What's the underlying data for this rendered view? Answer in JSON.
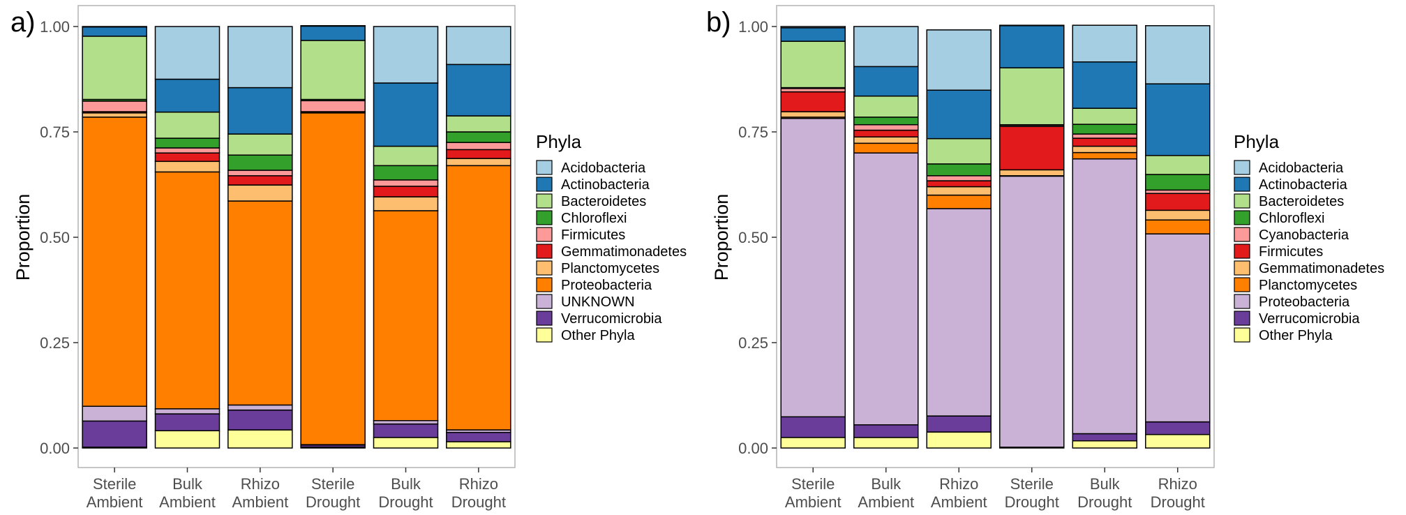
{
  "chart_data": [
    {
      "type": "bar",
      "stacked": true,
      "panel_label": "a)",
      "ylabel": "Proportion",
      "ylim": [
        0,
        1
      ],
      "yticks": [
        "0.00",
        "0.25",
        "0.50",
        "0.75",
        "1.00"
      ],
      "categories": [
        [
          "Sterile",
          "Ambient"
        ],
        [
          "Bulk",
          "Ambient"
        ],
        [
          "Rhizo",
          "Ambient"
        ],
        [
          "Sterile",
          "Drought"
        ],
        [
          "Bulk",
          "Drought"
        ],
        [
          "Rhizo",
          "Drought"
        ]
      ],
      "legend_title": "Phyla",
      "series": [
        {
          "name": "Other Phyla",
          "color": "#FFFF99",
          "values": [
            0.002,
            0.041,
            0.043,
            0.002,
            0.025,
            0.015
          ]
        },
        {
          "name": "Verrucomicrobia",
          "color": "#6A3D9A",
          "values": [
            0.062,
            0.04,
            0.047,
            0.005,
            0.032,
            0.022
          ]
        },
        {
          "name": "UNKNOWN",
          "color": "#CAB2D6",
          "values": [
            0.035,
            0.012,
            0.012,
            0.001,
            0.008,
            0.006
          ]
        },
        {
          "name": "Proteobacteria",
          "color": "#FF7F00",
          "values": [
            0.686,
            0.562,
            0.484,
            0.787,
            0.498,
            0.627
          ]
        },
        {
          "name": "Planctomycetes",
          "color": "#FDBF6F",
          "values": [
            0.01,
            0.025,
            0.038,
            0.002,
            0.033,
            0.017
          ]
        },
        {
          "name": "Gemmatimonadetes",
          "color": "#E31A1C",
          "values": [
            0.003,
            0.02,
            0.022,
            0.001,
            0.025,
            0.021
          ]
        },
        {
          "name": "Firmicutes",
          "color": "#FB9A99",
          "values": [
            0.025,
            0.012,
            0.013,
            0.026,
            0.015,
            0.017
          ]
        },
        {
          "name": "Chloroflexi",
          "color": "#33A02C",
          "values": [
            0.004,
            0.023,
            0.036,
            0.003,
            0.034,
            0.025
          ]
        },
        {
          "name": "Bacteroidetes",
          "color": "#B2DF8A",
          "values": [
            0.15,
            0.062,
            0.05,
            0.14,
            0.046,
            0.038
          ]
        },
        {
          "name": "Actinobacteria",
          "color": "#1F78B4",
          "values": [
            0.022,
            0.078,
            0.11,
            0.034,
            0.15,
            0.122
          ]
        },
        {
          "name": "Acidobacteria",
          "color": "#A6CEE3",
          "values": [
            0.001,
            0.125,
            0.145,
            0.001,
            0.134,
            0.09
          ]
        }
      ]
    },
    {
      "type": "bar",
      "stacked": true,
      "panel_label": "b)",
      "ylabel": "Proportion",
      "ylim": [
        0,
        1
      ],
      "yticks": [
        "0.00",
        "0.25",
        "0.50",
        "0.75",
        "1.00"
      ],
      "categories": [
        [
          "Sterile",
          "Ambient"
        ],
        [
          "Bulk",
          "Ambient"
        ],
        [
          "Rhizo",
          "Ambient"
        ],
        [
          "Sterile",
          "Drought"
        ],
        [
          "Bulk",
          "Drought"
        ],
        [
          "Rhizo",
          "Drought"
        ]
      ],
      "legend_title": "Phyla",
      "series": [
        {
          "name": "Other Phyla",
          "color": "#FFFF99",
          "values": [
            0.025,
            0.025,
            0.038,
            0.001,
            0.017,
            0.032
          ]
        },
        {
          "name": "Verrucomicrobia",
          "color": "#6A3D9A",
          "values": [
            0.049,
            0.03,
            0.038,
            0.001,
            0.017,
            0.03
          ]
        },
        {
          "name": "Proteobacteria",
          "color": "#CAB2D6",
          "values": [
            0.708,
            0.645,
            0.492,
            0.643,
            0.652,
            0.446
          ]
        },
        {
          "name": "Planctomycetes",
          "color": "#FF7F00",
          "values": [
            0.003,
            0.023,
            0.032,
            0.001,
            0.015,
            0.033
          ]
        },
        {
          "name": "Gemmatimonadetes",
          "color": "#FDBF6F",
          "values": [
            0.013,
            0.015,
            0.02,
            0.014,
            0.015,
            0.023
          ]
        },
        {
          "name": "Firmicutes",
          "color": "#E31A1C",
          "values": [
            0.047,
            0.016,
            0.014,
            0.103,
            0.019,
            0.04
          ]
        },
        {
          "name": "Cyanobacteria",
          "color": "#FB9A99",
          "values": [
            0.008,
            0.013,
            0.012,
            0.003,
            0.01,
            0.008
          ]
        },
        {
          "name": "Chloroflexi",
          "color": "#33A02C",
          "values": [
            0.002,
            0.018,
            0.028,
            0.001,
            0.023,
            0.037
          ]
        },
        {
          "name": "Bacteroidetes",
          "color": "#B2DF8A",
          "values": [
            0.11,
            0.05,
            0.06,
            0.135,
            0.038,
            0.045
          ]
        },
        {
          "name": "Actinobacteria",
          "color": "#1F78B4",
          "values": [
            0.032,
            0.07,
            0.115,
            0.1,
            0.11,
            0.17
          ]
        },
        {
          "name": "Acidobacteria",
          "color": "#A6CEE3",
          "values": [
            0.003,
            0.095,
            0.143,
            0.001,
            0.087,
            0.138
          ]
        }
      ]
    }
  ]
}
